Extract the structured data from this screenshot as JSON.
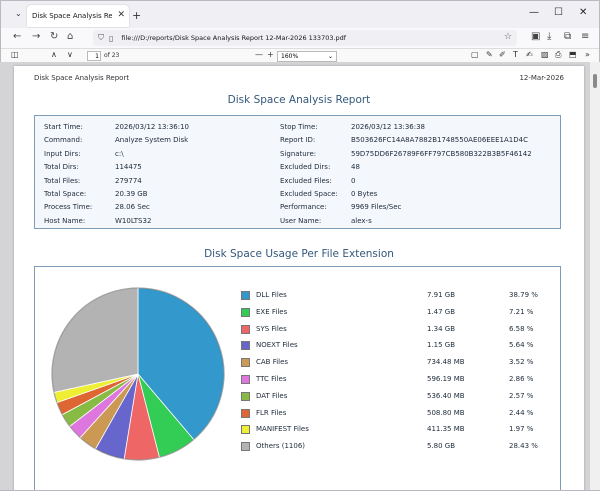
{
  "browser": {
    "tab_title": "Disk Space Analysis Report - Disk S",
    "tab_close": "✕",
    "new_tab": "+",
    "url": "file:///D:/reports/Disk Space Analysis Report 12-Mar-2026 133703.pdf",
    "window_controls": [
      "—",
      "☐",
      "✕"
    ]
  },
  "pdf_toolbar": {
    "page_number": "1",
    "page_count": "of 23",
    "zoom": "160%"
  },
  "document": {
    "header_left": "Disk Space Analysis Report",
    "header_right": "12-Mar-2026",
    "title": "Disk Space Analysis Report",
    "info_left": [
      {
        "label": "Start Time:",
        "value": "2026/03/12 13:36:10"
      },
      {
        "label": "Command:",
        "value": "Analyze System Disk"
      },
      {
        "label": "Input Dirs:",
        "value": "c:\\"
      },
      {
        "label": "Total Dirs:",
        "value": "114475"
      },
      {
        "label": "Total Files:",
        "value": "279774"
      },
      {
        "label": "Total Space:",
        "value": "20.39 GB"
      },
      {
        "label": "Process Time:",
        "value": "28.06 Sec"
      },
      {
        "label": "Host Name:",
        "value": "W10LTS32"
      }
    ],
    "info_right": [
      {
        "label": "Stop Time:",
        "value": "2026/03/12 13:36:38"
      },
      {
        "label": "Report ID:",
        "value": "B503626FC14A8A7882B1748550AE06EEE1A1D4C"
      },
      {
        "label": "Signature:",
        "value": "59D75DD6F26789F6FF797CB580B322B3B5F46142"
      },
      {
        "label": "Excluded Dirs:",
        "value": "48"
      },
      {
        "label": "Excluded Files:",
        "value": "0"
      },
      {
        "label": "Excluded Space:",
        "value": "0 Bytes"
      },
      {
        "label": "Performance:",
        "value": "9969 Files/Sec"
      },
      {
        "label": "User Name:",
        "value": "alex-s"
      }
    ],
    "usage_title": "Disk Space Usage Per File Extension"
  },
  "chart_data": {
    "type": "pie",
    "slices": [
      {
        "name": "DLL Files",
        "size": "7.91 GB",
        "percent_label": "38.79 %",
        "value": 38.79,
        "color": "#3399cc"
      },
      {
        "name": "EXE Files",
        "size": "1.47 GB",
        "percent_label": "7.21 %",
        "value": 7.21,
        "color": "#33cc55"
      },
      {
        "name": "SYS Files",
        "size": "1.34 GB",
        "percent_label": "6.58 %",
        "value": 6.58,
        "color": "#ee6666"
      },
      {
        "name": "NOEXT Files",
        "size": "1.15 GB",
        "percent_label": "5.64 %",
        "value": 5.64,
        "color": "#6666cc"
      },
      {
        "name": "CAB Files",
        "size": "734.48 MB",
        "percent_label": "3.52 %",
        "value": 3.52,
        "color": "#cc9955"
      },
      {
        "name": "TTC Files",
        "size": "596.19 MB",
        "percent_label": "2.86 %",
        "value": 2.86,
        "color": "#dd77dd"
      },
      {
        "name": "DAT Files",
        "size": "536.40 MB",
        "percent_label": "2.57 %",
        "value": 2.57,
        "color": "#88bb44"
      },
      {
        "name": "FLR Files",
        "size": "508.80 MB",
        "percent_label": "2.44 %",
        "value": 2.44,
        "color": "#dd6633"
      },
      {
        "name": "MANIFEST Files",
        "size": "411.35 MB",
        "percent_label": "1.97 %",
        "value": 1.97,
        "color": "#eeee33"
      },
      {
        "name": "Others (1106)",
        "size": "5.80 GB",
        "percent_label": "28.43 %",
        "value": 28.43,
        "color": "#b3b3b3"
      }
    ]
  }
}
